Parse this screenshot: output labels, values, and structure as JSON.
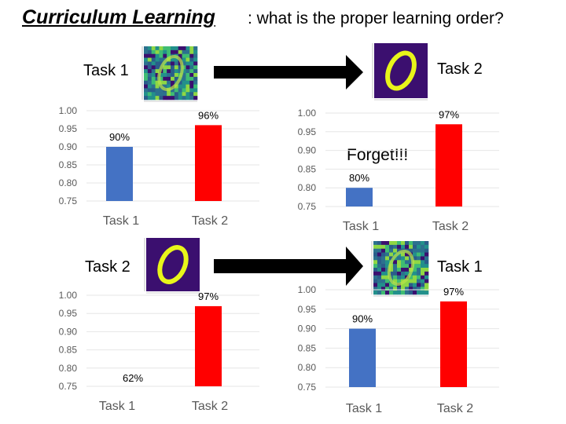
{
  "header": {
    "title": "Curriculum Learning",
    "subtitle": ": what is the proper learning order?"
  },
  "row1": {
    "left_task": "Task 1",
    "right_task": "Task 2",
    "note": "Forget!!!"
  },
  "row2": {
    "left_task": "Task 2",
    "right_task": "Task 1"
  },
  "colors": {
    "blue": "#4472C4",
    "red": "#FF0000",
    "arrow": "#000000",
    "thumb_bg": "#3b0f6f",
    "digit": "#e8f51a"
  },
  "chart_data": [
    {
      "type": "bar",
      "title": "",
      "categories": [
        "Task 1",
        "Task 2"
      ],
      "values": [
        0.9,
        0.96
      ],
      "data_labels": [
        "90%",
        "96%"
      ],
      "ylim": [
        0.75,
        1.0
      ],
      "yticks": [
        "1.00",
        "0.95",
        "0.90",
        "0.85",
        "0.80",
        "0.75"
      ],
      "colors": [
        "#4472C4",
        "#FF0000"
      ]
    },
    {
      "type": "bar",
      "title": "",
      "categories": [
        "Task 1",
        "Task 2"
      ],
      "values": [
        0.8,
        0.97
      ],
      "data_labels": [
        "80%",
        "97%"
      ],
      "ylim": [
        0.75,
        1.0
      ],
      "yticks": [
        "1.00",
        "0.95",
        "0.90",
        "0.85",
        "0.80",
        "0.75"
      ],
      "colors": [
        "#4472C4",
        "#FF0000"
      ]
    },
    {
      "type": "bar",
      "title": "",
      "categories": [
        "Task 1",
        "Task 2"
      ],
      "values": [
        0.62,
        0.97
      ],
      "data_labels": [
        "62%",
        "97%"
      ],
      "ylim": [
        0.75,
        1.0
      ],
      "yticks": [
        "1.00",
        "0.95",
        "0.90",
        "0.85",
        "0.80",
        "0.75"
      ],
      "colors": [
        "#4472C4",
        "#FF0000"
      ]
    },
    {
      "type": "bar",
      "title": "",
      "categories": [
        "Task 1",
        "Task 2"
      ],
      "values": [
        0.9,
        0.97
      ],
      "data_labels": [
        "90%",
        "97%"
      ],
      "ylim": [
        0.75,
        1.0
      ],
      "yticks": [
        "1.00",
        "0.95",
        "0.90",
        "0.85",
        "0.80",
        "0.75"
      ],
      "colors": [
        "#4472C4",
        "#FF0000"
      ]
    }
  ]
}
